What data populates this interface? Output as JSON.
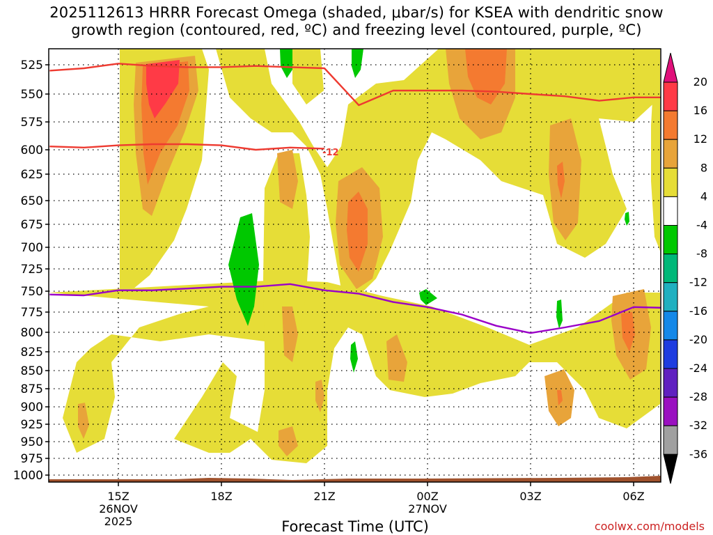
{
  "chart_data": {
    "type": "contour-timeheight",
    "title_line1": "2025112613 HRRR Forecast Omega (shaded, μbar/s) for KSEA with dendritic snow",
    "title_line2": "growth region (contoured, red, ºC) and freezing level (contoured, purple, ºC)",
    "xlabel": "Forecast Time (UTC)",
    "watermark": "coolwx.com/models",
    "y_ticks": [
      "525",
      "550",
      "575",
      "600",
      "625",
      "650",
      "675",
      "700",
      "725",
      "750",
      "775",
      "800",
      "825",
      "850",
      "875",
      "900",
      "925",
      "950",
      "975",
      "1000"
    ],
    "y_levels_hpa": [
      525,
      550,
      575,
      600,
      625,
      650,
      675,
      700,
      725,
      750,
      775,
      800,
      825,
      850,
      875,
      900,
      925,
      950,
      975,
      1000
    ],
    "x_ticks": [
      {
        "label": "15Z",
        "sub1": "26NOV",
        "sub2": "2025",
        "hour": 15
      },
      {
        "label": "18Z",
        "sub1": "",
        "sub2": "",
        "hour": 18
      },
      {
        "label": "21Z",
        "sub1": "",
        "sub2": "",
        "hour": 21
      },
      {
        "label": "00Z",
        "sub1": "27NOV",
        "sub2": "",
        "hour": 24
      },
      {
        "label": "03Z",
        "sub1": "",
        "sub2": "",
        "hour": 27
      },
      {
        "label": "06Z",
        "sub1": "",
        "sub2": "",
        "hour": 30
      }
    ],
    "x_range_hours": [
      13.0,
      31.0
    ],
    "y_range_hpa": [
      505,
      1010
    ],
    "colorbar": {
      "labels": [
        "20",
        "16",
        "12",
        "8",
        "4",
        "-4",
        "-8",
        "-12",
        "-16",
        "-20",
        "-24",
        "-28",
        "-32",
        "-36"
      ],
      "colors": [
        "#ff3a46",
        "#f47a30",
        "#e8a43a",
        "#e6dd37",
        "#ffffff",
        "#00c800",
        "#00b878",
        "#20b0c0",
        "#1488e8",
        "#1e3ce0",
        "#6020c0",
        "#9a10c0",
        "#a0a0a0"
      ],
      "top_triangle": "#e0107a",
      "bottom_triangle": "#000000"
    },
    "dgz_contour_label": "-12",
    "series": [
      {
        "name": "dendritic growth region -12C (upper)",
        "color": "#ee3a30",
        "x_hours": [
          13.0,
          14.0,
          15.0,
          16.0,
          17.0,
          18.0,
          19.0,
          20.0,
          21.0,
          22.0,
          23.0,
          24.0,
          25.0,
          26.0,
          27.0,
          28.0,
          29.0,
          30.0,
          31.0
        ],
        "y_hpa": [
          530,
          528,
          524,
          526,
          527,
          527,
          526,
          527,
          528,
          560,
          547,
          547,
          547,
          548,
          550,
          552,
          556,
          553,
          553
        ]
      },
      {
        "name": "dendritic growth region -12C (lower)",
        "color": "#ee3a30",
        "x_hours": [
          13.0,
          14.0,
          15.0,
          16.0,
          17.0,
          18.0,
          19.0,
          20.0,
          21.0
        ],
        "y_hpa": [
          597,
          598,
          596,
          595,
          595,
          596,
          600,
          598,
          599
        ]
      },
      {
        "name": "freezing level 0C",
        "color": "#9a00c8",
        "x_hours": [
          13.0,
          14.0,
          15.0,
          16.0,
          17.0,
          18.0,
          19.0,
          20.0,
          21.0,
          22.0,
          23.0,
          24.0,
          25.0,
          26.0,
          27.0,
          28.0,
          29.0,
          30.0,
          31.0
        ],
        "y_hpa": [
          754,
          755,
          749,
          749,
          747,
          745,
          745,
          742,
          749,
          753,
          763,
          769,
          778,
          792,
          801,
          794,
          786,
          769,
          770
        ]
      }
    ],
    "omega_blobs": [
      {
        "hours": 16.3,
        "hpa": 560,
        "value": 18
      },
      {
        "hours": 16.3,
        "hpa": 610,
        "value": 14
      },
      {
        "hours": 19.1,
        "hpa": 735,
        "value": -6
      },
      {
        "hours": 20.0,
        "hpa": 640,
        "value": 9
      },
      {
        "hours": 22.0,
        "hpa": 680,
        "value": 13
      },
      {
        "hours": 23.7,
        "hpa": 530,
        "value": 14
      },
      {
        "hours": 27.9,
        "hpa": 630,
        "value": 11
      },
      {
        "hours": 29.9,
        "hpa": 790,
        "value": 12
      },
      {
        "hours": 28.8,
        "hpa": 880,
        "value": 10
      },
      {
        "hours": 20.0,
        "hpa": 950,
        "value": 8
      },
      {
        "hours": 14.1,
        "hpa": 920,
        "value": 9
      },
      {
        "hours": 23.8,
        "hpa": 825,
        "value": 9
      },
      {
        "hours": 21.0,
        "hpa": 890,
        "value": 8
      }
    ]
  }
}
